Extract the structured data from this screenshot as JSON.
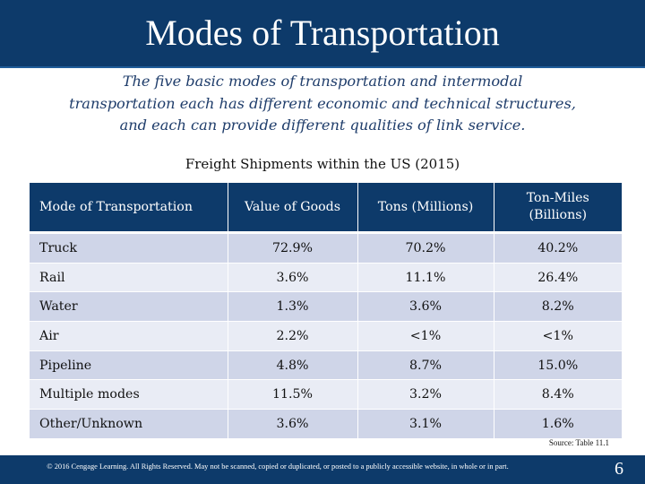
{
  "colors": {
    "header_bg": "#0d3a6a",
    "row_dark": "#cfd5e8",
    "row_light": "#e9ecf5",
    "subtitle_text": "#1f3d6b"
  },
  "slide": {
    "title": "Modes of Transportation",
    "subtitle_lines": [
      "The five basic modes of transportation and intermodal",
      "transportation each has different economic and technical structures,",
      "and each can provide different qualities of link service."
    ]
  },
  "table": {
    "title": "Freight Shipments within the US (2015)",
    "columns": [
      "Mode of Transportation",
      "Value of Goods",
      "Tons (Millions)",
      "Ton-Miles",
      "(Billions)"
    ],
    "rows": [
      [
        "Truck",
        "72.9%",
        "70.2%",
        "40.2%"
      ],
      [
        "Rail",
        "3.6%",
        "11.1%",
        "26.4%"
      ],
      [
        "Water",
        "1.3%",
        "3.6%",
        "8.2%"
      ],
      [
        "Air",
        "2.2%",
        "<1%",
        "<1%"
      ],
      [
        "Pipeline",
        "4.8%",
        "8.7%",
        "15.0%"
      ],
      [
        "Multiple modes",
        "11.5%",
        "3.2%",
        "8.4%"
      ],
      [
        "Other/Unknown",
        "3.6%",
        "3.1%",
        "1.6%"
      ]
    ],
    "source": "Source: Table 11.1"
  },
  "footer": {
    "copyright": "© 2016 Cengage Learning. All Rights Reserved. May not be scanned, copied or duplicated, or posted to a publicly accessible website, in whole or in part.",
    "page_number": "6"
  }
}
